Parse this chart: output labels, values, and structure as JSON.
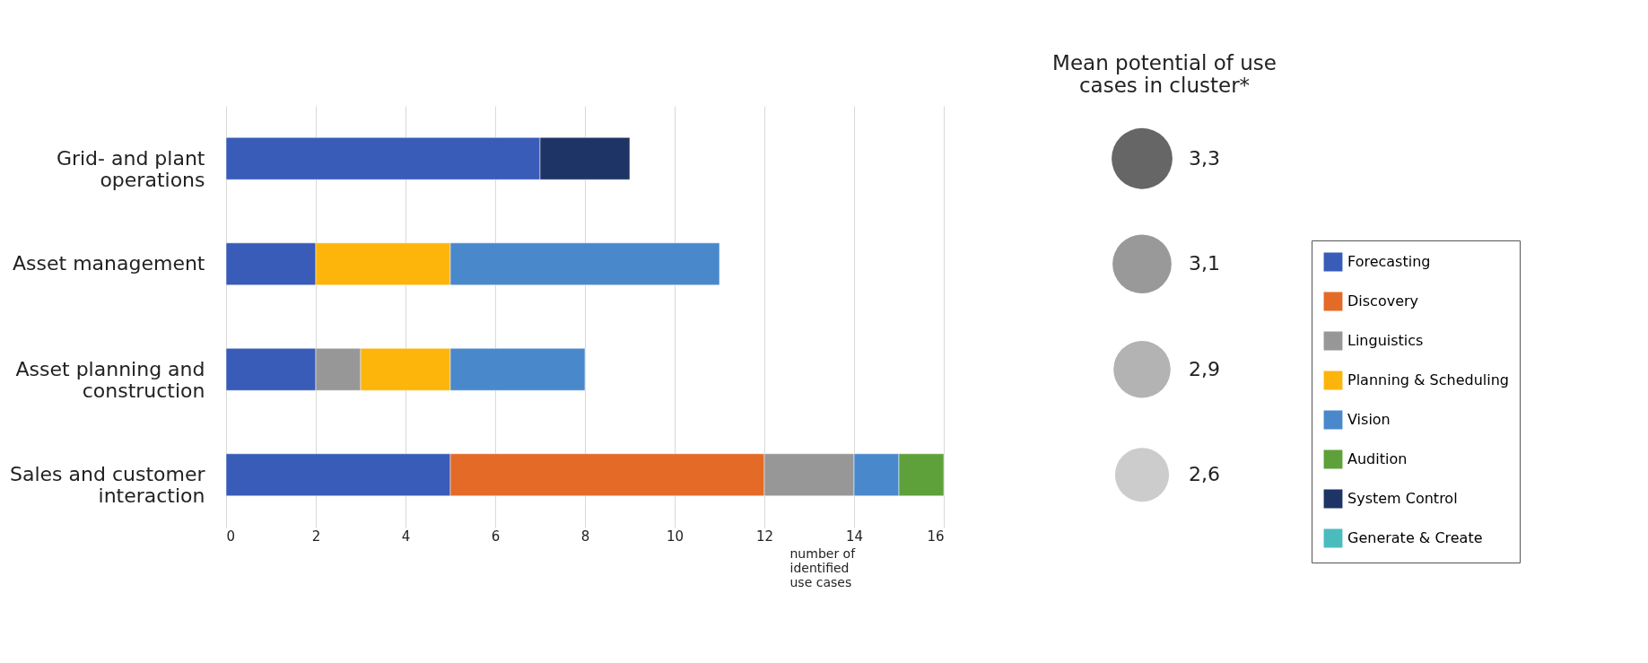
{
  "chart_data": [
    {
      "type": "bar",
      "orientation": "horizontal",
      "stacked": true,
      "xlabel": "number of identified use cases",
      "categories": [
        "Grid- and plant operations",
        "Asset management",
        "Asset planning and construction",
        "Sales and customer interaction"
      ],
      "series": [
        {
          "name": "Forecasting",
          "color": "#385cb8",
          "values": [
            7,
            2,
            2,
            5
          ]
        },
        {
          "name": "Discovery",
          "color": "#e46a27",
          "values": [
            null,
            null,
            null,
            7
          ]
        },
        {
          "name": "Linguistics",
          "color": "#979797",
          "values": [
            null,
            null,
            1,
            2
          ]
        },
        {
          "name": "Planning & Scheduling",
          "color": "#fdb50c",
          "values": [
            null,
            3,
            2,
            null
          ]
        },
        {
          "name": "Vision",
          "color": "#4a88cc",
          "values": [
            null,
            6,
            3,
            1
          ]
        },
        {
          "name": "Audition",
          "color": "#5ea13a",
          "values": [
            null,
            null,
            null,
            1
          ]
        },
        {
          "name": "System Control",
          "color": "#1f3466",
          "values": [
            2,
            null,
            null,
            null
          ]
        },
        {
          "name": "Generate & Create",
          "color": "#4bbcbe",
          "values": [
            null,
            null,
            null,
            null
          ]
        }
      ],
      "xlim": [
        0,
        16
      ],
      "xticks": [
        0,
        2,
        4,
        6,
        8,
        10,
        12,
        14,
        16
      ],
      "grid": "x",
      "legend": "bottom right"
    },
    {
      "type": "other",
      "title": "Mean potential of use cases in cluster*",
      "values": [
        3.3,
        3.1,
        2.9,
        2.6
      ],
      "value_labels": [
        "3,3",
        "3,1",
        "2,9",
        "2,6"
      ],
      "colors": [
        "#666666",
        "#999999",
        "#b3b3b3",
        "#cccccc"
      ]
    }
  ]
}
